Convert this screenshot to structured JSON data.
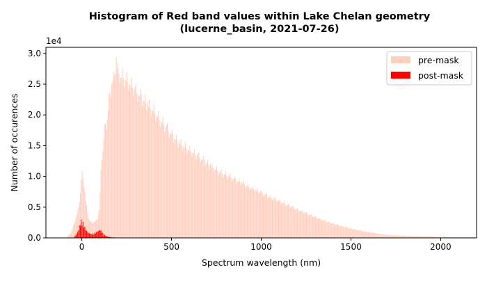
{
  "chart_data": {
    "type": "bar",
    "title_lines": [
      "Histogram of Red band values within Lake Chelan geometry",
      "(lucerne_basin, 2021-07-26)"
    ],
    "xlabel": "Spectrum wavelength (nm)",
    "ylabel": "Number of occurences",
    "y_offset_text": "1e4",
    "xlim": [
      -200,
      2200
    ],
    "ylim": [
      0,
      3.1
    ],
    "xticks": [
      0,
      500,
      1000,
      1500,
      2000
    ],
    "xtick_labels": [
      "0",
      "500",
      "1000",
      "1500",
      "2000"
    ],
    "yticks": [
      0,
      0.5,
      1.0,
      1.5,
      2.0,
      2.5,
      3.0
    ],
    "ytick_labels": [
      "0.0",
      "0.5",
      "1.0",
      "1.5",
      "2.0",
      "2.5",
      "3.0"
    ],
    "grid": false,
    "legend_position": "top-right",
    "series": [
      {
        "name": "pre-mask",
        "color": "#ffcfbe",
        "points": [
          [
            -80,
            0.02
          ],
          [
            -60,
            0.08
          ],
          [
            -40,
            0.25
          ],
          [
            -20,
            0.45
          ],
          [
            -10,
            0.62
          ],
          [
            0,
            1.05
          ],
          [
            10,
            0.95
          ],
          [
            20,
            0.65
          ],
          [
            30,
            0.45
          ],
          [
            40,
            0.3
          ],
          [
            50,
            0.25
          ],
          [
            60,
            0.24
          ],
          [
            70,
            0.26
          ],
          [
            80,
            0.28
          ],
          [
            90,
            0.33
          ],
          [
            100,
            0.5
          ],
          [
            110,
            1.3
          ],
          [
            120,
            1.45
          ],
          [
            130,
            1.85
          ],
          [
            140,
            1.85
          ],
          [
            150,
            2.15
          ],
          [
            160,
            2.35
          ],
          [
            170,
            2.55
          ],
          [
            180,
            2.55
          ],
          [
            190,
            2.9
          ],
          [
            200,
            2.7
          ],
          [
            220,
            2.6
          ],
          [
            240,
            2.58
          ],
          [
            260,
            2.52
          ],
          [
            280,
            2.45
          ],
          [
            300,
            2.38
          ],
          [
            330,
            2.28
          ],
          [
            360,
            2.18
          ],
          [
            400,
            2.05
          ],
          [
            440,
            1.9
          ],
          [
            480,
            1.75
          ],
          [
            520,
            1.6
          ],
          [
            560,
            1.5
          ],
          [
            600,
            1.42
          ],
          [
            650,
            1.32
          ],
          [
            700,
            1.2
          ],
          [
            750,
            1.1
          ],
          [
            800,
            1.02
          ],
          [
            850,
            0.95
          ],
          [
            900,
            0.88
          ],
          [
            950,
            0.8
          ],
          [
            1000,
            0.73
          ],
          [
            1050,
            0.66
          ],
          [
            1100,
            0.6
          ],
          [
            1150,
            0.53
          ],
          [
            1200,
            0.46
          ],
          [
            1250,
            0.4
          ],
          [
            1300,
            0.34
          ],
          [
            1350,
            0.28
          ],
          [
            1400,
            0.23
          ],
          [
            1450,
            0.19
          ],
          [
            1500,
            0.15
          ],
          [
            1550,
            0.12
          ],
          [
            1600,
            0.09
          ],
          [
            1650,
            0.07
          ],
          [
            1700,
            0.05
          ],
          [
            1800,
            0.035
          ],
          [
            1900,
            0.025
          ],
          [
            2000,
            0.018
          ],
          [
            2100,
            0.012
          ],
          [
            2200,
            0.01
          ]
        ]
      },
      {
        "name": "post-mask",
        "color": "#ff0000",
        "points": [
          [
            -40,
            0.02
          ],
          [
            -30,
            0.05
          ],
          [
            -20,
            0.1
          ],
          [
            -15,
            0.15
          ],
          [
            -10,
            0.2
          ],
          [
            -5,
            0.24
          ],
          [
            0,
            0.26
          ],
          [
            5,
            0.24
          ],
          [
            10,
            0.2
          ],
          [
            20,
            0.14
          ],
          [
            30,
            0.09
          ],
          [
            40,
            0.07
          ],
          [
            50,
            0.06
          ],
          [
            60,
            0.06
          ],
          [
            70,
            0.07
          ],
          [
            80,
            0.08
          ],
          [
            90,
            0.1
          ],
          [
            100,
            0.12
          ],
          [
            110,
            0.1
          ],
          [
            120,
            0.06
          ],
          [
            130,
            0.04
          ],
          [
            140,
            0.025
          ],
          [
            150,
            0.015
          ],
          [
            170,
            0.008
          ],
          [
            200,
            0.004
          ],
          [
            250,
            0.002
          ],
          [
            300,
            0.0
          ]
        ]
      }
    ]
  }
}
